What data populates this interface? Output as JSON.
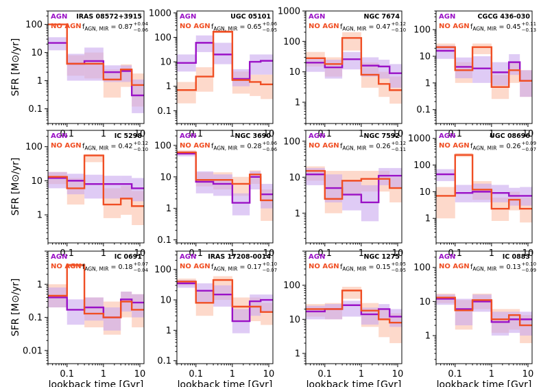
{
  "colors": {
    "agn": "#9a11c6",
    "noagn": "#f04e23",
    "agn_band": "#c9a8ee",
    "noagn_band": "#fbc0a8"
  },
  "labels": {
    "agn": "AGN",
    "noagn": "NO AGN",
    "f_symbol": "f",
    "f_sub": "AGN, MIR"
  },
  "chart_data": [
    {
      "type": "line",
      "title": "IRAS 08572+3915",
      "f_value": "0.87",
      "f_plus": "+0.04",
      "f_minus": "−0.06",
      "ylim": [
        0.03,
        300
      ],
      "ytick_labels": [
        [
          "100",
          "100"
        ],
        [
          "10",
          "10"
        ],
        [
          "1",
          "1"
        ],
        [
          "0.1",
          "0.1"
        ]
      ],
      "ylabel": "SFR [M⊙/yr]",
      "xlabel": "",
      "agn": {
        "values": [
          22,
          4,
          5,
          2,
          2.2,
          0.3
        ],
        "lo": [
          12,
          1,
          1,
          0.9,
          0.9,
          0.07
        ],
        "hi": [
          35,
          9,
          15,
          3.5,
          3.5,
          1.1
        ]
      },
      "noagn": {
        "values": [
          100,
          4,
          4,
          1.1,
          2.5,
          0.7
        ],
        "lo": [
          100,
          1.5,
          1.2,
          0.25,
          0.6,
          0.12
        ],
        "hi": [
          100,
          8,
          10,
          2.5,
          3.8,
          1.8
        ]
      }
    },
    {
      "type": "line",
      "title": "UGC 05101",
      "f_value": "0.65",
      "f_plus": "+0.06",
      "f_minus": "−0.05",
      "ylim": [
        0.03,
        1200
      ],
      "ytick_labels": [
        [
          "1000",
          "1000"
        ],
        [
          "100",
          "100"
        ],
        [
          "10",
          "10"
        ],
        [
          "1",
          "1"
        ],
        [
          "0.1",
          "0.1"
        ]
      ],
      "ylabel": "",
      "xlabel": "",
      "agn": {
        "values": [
          9,
          60,
          20,
          2,
          10,
          11
        ],
        "lo": [
          4,
          25,
          8,
          1,
          3,
          3
        ],
        "hi": [
          20,
          120,
          60,
          5,
          20,
          20
        ]
      },
      "noagn": {
        "values": [
          0.7,
          2.5,
          170,
          1.8,
          1.5,
          1.2
        ],
        "lo": [
          0.2,
          0.6,
          150,
          0.5,
          0.4,
          0.3
        ],
        "hi": [
          1.5,
          6,
          200,
          4,
          3,
          3
        ]
      }
    },
    {
      "type": "line",
      "title": "NGC 7674",
      "f_value": "0.47",
      "f_plus": "+0.12",
      "f_minus": "−0.10",
      "ylim": [
        0.2,
        1000
      ],
      "ytick_labels": [
        [
          "1000",
          "1000"
        ],
        [
          "100",
          "100"
        ],
        [
          "10",
          "10"
        ],
        [
          "1",
          "1"
        ]
      ],
      "ylabel": "",
      "xlabel": "",
      "agn": {
        "values": [
          20,
          14,
          26,
          16,
          15,
          9
        ],
        "lo": [
          10,
          6,
          12,
          7,
          6,
          3
        ],
        "hi": [
          28,
          25,
          45,
          30,
          25,
          18
        ]
      },
      "noagn": {
        "values": [
          28,
          18,
          130,
          8,
          4,
          2.5
        ],
        "lo": [
          15,
          7,
          50,
          3,
          1.5,
          0.9
        ],
        "hi": [
          45,
          30,
          200,
          20,
          10,
          7
        ]
      }
    },
    {
      "type": "line",
      "title": "CGCG 436-030",
      "f_value": "0.45",
      "f_plus": "+0.11",
      "f_minus": "−0.13",
      "ylim": [
        0.03,
        500
      ],
      "ytick_labels": [
        [
          "100",
          "100"
        ],
        [
          "10",
          "10"
        ],
        [
          "1",
          "1"
        ],
        [
          "0.1",
          "0.1"
        ]
      ],
      "ylabel": "",
      "xlabel": "",
      "agn": {
        "values": [
          16,
          4,
          3.5,
          2.5,
          6,
          1.2
        ],
        "lo": [
          8,
          1.5,
          1,
          0.8,
          2,
          0.3
        ],
        "hi": [
          25,
          9,
          10,
          6,
          12,
          3
        ]
      },
      "noagn": {
        "values": [
          22,
          3,
          22,
          0.7,
          3,
          1.2
        ],
        "lo": [
          15,
          1,
          12,
          0.25,
          1,
          0.3
        ],
        "hi": [
          30,
          6,
          30,
          2,
          6,
          3
        ]
      }
    },
    {
      "type": "line",
      "title": "IC 5298",
      "f_value": "0.42",
      "f_plus": "+0.12",
      "f_minus": "−0.10",
      "ylim": [
        0.15,
        300
      ],
      "ytick_labels": [
        [
          "100",
          "100"
        ],
        [
          "10",
          "10"
        ],
        [
          "1",
          "1"
        ]
      ],
      "ylabel": "SFR [M⊙/yr]",
      "xlabel": "",
      "agn": {
        "values": [
          12,
          10,
          8,
          8,
          8,
          6
        ],
        "lo": [
          6,
          4,
          3,
          3,
          3,
          2.5
        ],
        "hi": [
          18,
          16,
          15,
          14,
          14,
          12
        ]
      },
      "noagn": {
        "values": [
          13,
          6,
          55,
          2,
          3,
          1.8
        ],
        "lo": [
          8,
          2,
          35,
          0.8,
          1,
          0.5
        ],
        "hi": [
          18,
          12,
          60,
          6,
          7,
          5
        ]
      }
    },
    {
      "type": "line",
      "title": "NGC 3690",
      "f_value": "0.28",
      "f_plus": "+0.06",
      "f_minus": "−0.06",
      "ylim": [
        0.08,
        300
      ],
      "ytick_labels": [
        [
          "100",
          "100"
        ],
        [
          "10",
          "10"
        ],
        [
          "1",
          "1"
        ],
        [
          "0.1",
          "0.1"
        ]
      ],
      "ylabel": "",
      "xlabel": "",
      "agn": {
        "values": [
          55,
          7,
          6,
          1.5,
          10,
          2.8
        ],
        "lo": [
          45,
          3,
          2.5,
          0.6,
          4,
          1
        ],
        "hi": [
          65,
          15,
          12,
          3,
          15,
          6
        ]
      },
      "noagn": {
        "values": [
          60,
          8,
          8,
          6,
          12,
          1.8
        ],
        "lo": [
          50,
          5,
          4,
          2.5,
          6,
          0.4
        ],
        "hi": [
          70,
          14,
          14,
          10,
          16,
          4
        ]
      }
    },
    {
      "type": "line",
      "title": "NGC 7592",
      "f_value": "0.26",
      "f_plus": "+0.12",
      "f_minus": "−0.11",
      "ylim": [
        0.15,
        200
      ],
      "ytick_labels": [
        [
          "100",
          "100"
        ],
        [
          "10",
          "10"
        ],
        [
          "1",
          "1"
        ]
      ],
      "ylabel": "",
      "xlabel": "",
      "agn": {
        "values": [
          12,
          5,
          3.3,
          2,
          11,
          11
        ],
        "lo": [
          6,
          2,
          1.2,
          0.6,
          6,
          5
        ],
        "hi": [
          18,
          12,
          8,
          6,
          18,
          18
        ]
      },
      "noagn": {
        "values": [
          15,
          2.5,
          8,
          9,
          9,
          5
        ],
        "lo": [
          8,
          1,
          3,
          4,
          4,
          2
        ],
        "hi": [
          20,
          15,
          15,
          15,
          15,
          10
        ]
      }
    },
    {
      "type": "line",
      "title": "UGC 08696",
      "f_value": "0.26",
      "f_plus": "+0.09",
      "f_minus": "−0.07",
      "ylim": [
        0.12,
        2000
      ],
      "ytick_labels": [
        [
          "1000",
          "1000"
        ],
        [
          "100",
          "100"
        ],
        [
          "10",
          "10"
        ],
        [
          "1",
          "1"
        ]
      ],
      "ylabel": "",
      "xlabel": "",
      "agn": {
        "values": [
          45,
          9,
          10,
          9,
          7,
          7
        ],
        "lo": [
          25,
          4,
          4,
          4,
          3,
          3
        ],
        "hi": [
          70,
          18,
          20,
          18,
          14,
          15
        ]
      },
      "noagn": {
        "values": [
          7,
          240,
          12,
          2.3,
          5,
          2.3
        ],
        "lo": [
          1,
          200,
          5,
          0.8,
          2,
          0.7
        ],
        "hi": [
          15,
          280,
          25,
          6,
          10,
          6
        ]
      }
    },
    {
      "type": "line",
      "title": "IC 0691",
      "f_value": "0.18",
      "f_plus": "+0.07",
      "f_minus": "−0.04",
      "ylim": [
        0.004,
        10
      ],
      "ytick_labels": [
        [
          "1",
          "1"
        ],
        [
          "0.1",
          "0.1"
        ],
        [
          "0.01",
          "0.01"
        ]
      ],
      "ylabel": "SFR [M⊙/yr]",
      "xlabel": "lookback time [Gyr]",
      "agn": {
        "values": [
          0.4,
          0.17,
          0.2,
          0.1,
          0.35,
          0.28
        ],
        "lo": [
          0.2,
          0.06,
          0.08,
          0.04,
          0.15,
          0.1
        ],
        "hi": [
          0.8,
          0.35,
          0.4,
          0.2,
          0.6,
          0.5
        ]
      },
      "noagn": {
        "values": [
          0.45,
          3.8,
          0.13,
          0.1,
          0.3,
          0.17
        ],
        "lo": [
          0.2,
          3.3,
          0.05,
          0.03,
          0.1,
          0.05
        ],
        "hi": [
          1,
          4.3,
          0.4,
          0.3,
          0.6,
          0.5
        ]
      }
    },
    {
      "type": "line",
      "title": "IRAS 17208-0014",
      "f_value": "0.17",
      "f_plus": "+0.10",
      "f_minus": "−0.07",
      "ylim": [
        0.08,
        400
      ],
      "ytick_labels": [
        [
          "100",
          "100"
        ],
        [
          "10",
          "10"
        ],
        [
          "1",
          "1"
        ],
        [
          "0.1",
          "0.1"
        ]
      ],
      "ylabel": "",
      "xlabel": "lookback time [Gyr]",
      "agn": {
        "values": [
          35,
          20,
          15,
          2,
          9,
          10
        ],
        "lo": [
          25,
          8,
          6,
          0.8,
          3,
          4
        ],
        "hi": [
          45,
          35,
          30,
          5,
          15,
          15
        ]
      },
      "noagn": {
        "values": [
          40,
          8,
          45,
          6,
          6,
          4
        ],
        "lo": [
          30,
          3,
          10,
          2,
          2,
          1.5
        ],
        "hi": [
          50,
          20,
          60,
          12,
          12,
          8
        ]
      }
    },
    {
      "type": "line",
      "title": "NGC 1275",
      "f_value": "0.15",
      "f_plus": "+0.05",
      "f_minus": "−0.05",
      "ylim": [
        0.5,
        1000
      ],
      "ytick_labels": [
        [
          "100",
          "100"
        ],
        [
          "10",
          "10"
        ],
        [
          "1",
          "1"
        ]
      ],
      "ylabel": "",
      "xlabel": "lookback time [Gyr]",
      "agn": {
        "values": [
          17,
          20,
          26,
          14,
          20,
          12
        ],
        "lo": [
          10,
          10,
          12,
          7,
          10,
          6
        ],
        "hi": [
          25,
          28,
          35,
          22,
          28,
          20
        ]
      },
      "noagn": {
        "values": [
          20,
          20,
          70,
          18,
          10,
          8
        ],
        "lo": [
          12,
          10,
          40,
          6,
          3,
          2
        ],
        "hi": [
          28,
          30,
          90,
          30,
          20,
          15
        ]
      }
    },
    {
      "type": "line",
      "title": "IC 0883",
      "f_value": "0.13",
      "f_plus": "+0.10",
      "f_minus": "−0.09",
      "ylim": [
        0.15,
        300
      ],
      "ytick_labels": [
        [
          "100",
          "100"
        ],
        [
          "10",
          "10"
        ],
        [
          "1",
          "1"
        ]
      ],
      "ylabel": "",
      "xlabel": "lookback time [Gyr]",
      "agn": {
        "values": [
          12,
          6,
          10,
          2.5,
          3,
          3
        ],
        "lo": [
          8,
          2,
          5,
          1,
          1.2,
          1
        ],
        "hi": [
          16,
          12,
          16,
          5,
          5,
          5
        ]
      },
      "noagn": {
        "values": [
          13,
          5.5,
          11,
          3,
          4,
          2
        ],
        "lo": [
          9,
          1.5,
          6,
          1.2,
          1.5,
          0.6
        ],
        "hi": [
          17,
          11,
          17,
          6,
          6,
          4
        ]
      }
    }
  ],
  "shared": {
    "type": "line",
    "x_bin_edges_gyr": [
      0.03,
      0.1,
      0.3,
      1,
      3,
      6,
      13
    ],
    "xlim": [
      0.03,
      13
    ],
    "xtick_labels": [
      [
        "0.1",
        "0.1"
      ],
      [
        "1",
        "1"
      ],
      [
        "10",
        "10"
      ]
    ]
  }
}
